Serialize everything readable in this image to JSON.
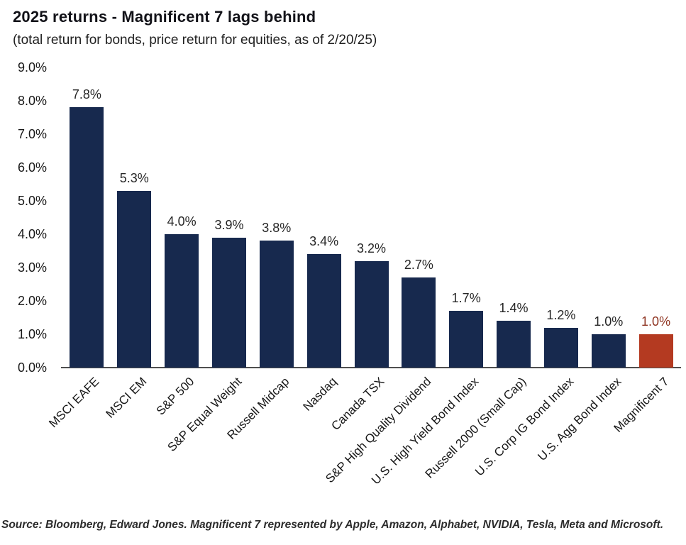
{
  "chart": {
    "title": "2025 returns - Magnificent 7 lags behind",
    "subtitle": "(total return for bonds, price return for equities, as of 2/20/25)",
    "source": "Source: Bloomberg, Edward Jones. Magnificent 7 represented by Apple, Amazon, Alphabet, NVIDIA, Tesla, Meta and Microsoft."
  },
  "chart_data": {
    "type": "bar",
    "title": "2025 returns - Magnificent 7 lags behind",
    "subtitle": "(total return for bonds, price return for equities, as of 2/20/25)",
    "categories": [
      "MSCI EAFE",
      "MSCI EM",
      "S&P 500",
      "S&P Equal Weight",
      "Russell Midcap",
      "Nasdaq",
      "Canada TSX",
      "S&P High Quality Dividend",
      "U.S. High Yield Bond Index",
      "Russell 2000 (Small Cap)",
      "U.S. Corp IG Bond Index",
      "U.S. Agg Bond Index",
      "Magnificent 7"
    ],
    "values": [
      7.8,
      5.3,
      4.0,
      3.9,
      3.8,
      3.4,
      3.2,
      2.7,
      1.7,
      1.4,
      1.2,
      1.0,
      1.0
    ],
    "value_labels": [
      "7.8%",
      "5.3%",
      "4.0%",
      "3.9%",
      "3.8%",
      "3.4%",
      "3.2%",
      "2.7%",
      "1.7%",
      "1.4%",
      "1.2%",
      "1.0%",
      "1.0%"
    ],
    "ylim": [
      0,
      9
    ],
    "ytick_labels": [
      "0.0%",
      "1.0%",
      "2.0%",
      "3.0%",
      "4.0%",
      "5.0%",
      "6.0%",
      "7.0%",
      "8.0%",
      "9.0%"
    ],
    "grid": false,
    "legend": false,
    "xlabel": "",
    "ylabel": "",
    "colors": {
      "bar_default": "#17294E",
      "bar_highlight": "#B43A21",
      "value_label_default": "#262626",
      "value_label_highlight": "#8E3320",
      "axis_line": "#4f4f4f"
    },
    "highlight_index": 12
  }
}
